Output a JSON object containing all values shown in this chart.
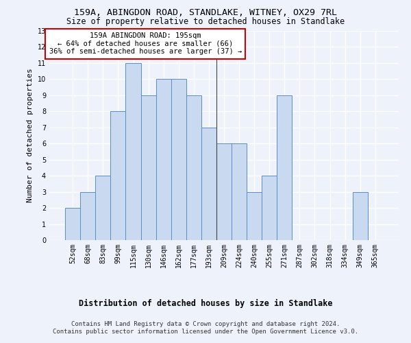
{
  "title": "159A, ABINGDON ROAD, STANDLAKE, WITNEY, OX29 7RL",
  "subtitle": "Size of property relative to detached houses in Standlake",
  "xlabel": "Distribution of detached houses by size in Standlake",
  "ylabel": "Number of detached properties",
  "categories": [
    "52sqm",
    "68sqm",
    "83sqm",
    "99sqm",
    "115sqm",
    "130sqm",
    "146sqm",
    "162sqm",
    "177sqm",
    "193sqm",
    "209sqm",
    "224sqm",
    "240sqm",
    "255sqm",
    "271sqm",
    "287sqm",
    "302sqm",
    "318sqm",
    "334sqm",
    "349sqm",
    "365sqm"
  ],
  "values": [
    2,
    3,
    4,
    8,
    11,
    9,
    10,
    10,
    9,
    7,
    6,
    6,
    3,
    4,
    9,
    0,
    0,
    0,
    0,
    3,
    0
  ],
  "bar_color": "#c9d9f0",
  "bar_edge_color": "#5b8cc8",
  "background_color": "#eef2fb",
  "grid_color": "#ffffff",
  "annotation_text": "159A ABINGDON ROAD: 195sqm\n← 64% of detached houses are smaller (66)\n36% of semi-detached houses are larger (37) →",
  "annotation_box_color": "#ffffff",
  "annotation_box_edge_color": "#cc0000",
  "vline_x_index": 9.5,
  "ylim": [
    0,
    13
  ],
  "yticks": [
    0,
    1,
    2,
    3,
    4,
    5,
    6,
    7,
    8,
    9,
    10,
    11,
    12,
    13
  ],
  "footer": "Contains HM Land Registry data © Crown copyright and database right 2024.\nContains public sector information licensed under the Open Government Licence v3.0.",
  "title_fontsize": 9.5,
  "subtitle_fontsize": 8.5,
  "xlabel_fontsize": 8.5,
  "ylabel_fontsize": 8,
  "tick_fontsize": 7,
  "annotation_fontsize": 7.5,
  "footer_fontsize": 6.5
}
